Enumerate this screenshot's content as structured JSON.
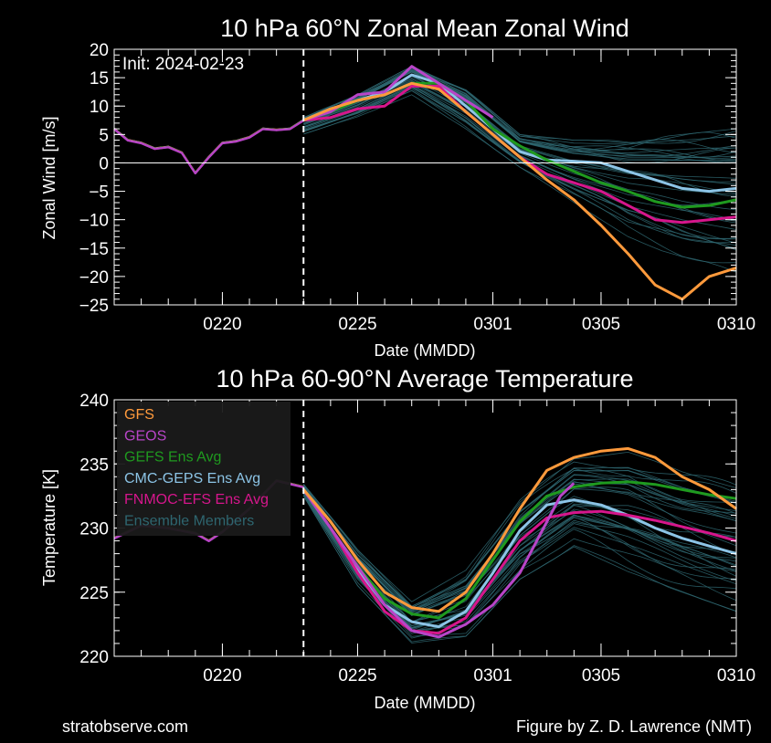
{
  "footer": {
    "left": "stratobserve.com",
    "right": "Figure by Z. D. Lawrence (NMT)"
  },
  "colors": {
    "GFS": "#ff9a3c",
    "GEOS": "#b845c8",
    "GEFS Ens Avg": "#1f9a1f",
    "CMC-GEPS Ens Avg": "#8cc4e6",
    "FNMOC-EFS Ens Avg": "#d6168c",
    "Ensemble Members": "#2e6670"
  },
  "chart_data": [
    {
      "type": "line",
      "title": "10 hPa  60°N   Zonal Mean Zonal Wind",
      "xlabel": "Date (MMDD)",
      "ylabel": "Zonal  Wind   [m/s]",
      "annotation": "Init: 2024-02-23",
      "init_day": 23,
      "x_units": "day index (0216 = 16 ... 0310 = 39)",
      "xlim": [
        16,
        39
      ],
      "ylim": [
        -25,
        20
      ],
      "y_ticks": [
        -25,
        -20,
        -15,
        -10,
        -5,
        0,
        5,
        10,
        15,
        20
      ],
      "x_ticks": [
        20,
        25,
        30,
        34,
        39
      ],
      "x_tick_labels": [
        "0220",
        "0225",
        "0301",
        "0305",
        "0310"
      ],
      "zero_line": true,
      "analysis": {
        "x": [
          16,
          16.5,
          17,
          17.5,
          18,
          18.5,
          19,
          19.5,
          20,
          20.5,
          21,
          21.5,
          22,
          22.5,
          23
        ],
        "y": [
          6,
          4,
          3.5,
          2.5,
          2.8,
          1.8,
          -1.8,
          1.0,
          3.5,
          3.8,
          4.5,
          6.0,
          5.8,
          6.0,
          7.5
        ]
      },
      "series": [
        {
          "name": "GFS",
          "x": [
            23,
            24,
            25,
            26,
            27,
            28,
            29,
            30,
            31,
            32,
            33,
            34,
            35,
            36,
            37,
            38,
            39
          ],
          "y": [
            7.5,
            9.5,
            11,
            12,
            14,
            13,
            9,
            5,
            1,
            -3,
            -6.5,
            -11,
            -16,
            -21.5,
            -24,
            -20,
            -18.5
          ]
        },
        {
          "name": "GEOS",
          "x": [
            23,
            24,
            25,
            26,
            27,
            28,
            29,
            30
          ],
          "y": [
            7.5,
            9,
            12,
            12.5,
            17,
            14,
            11,
            8
          ]
        },
        {
          "name": "GEFS Ens Avg",
          "x": [
            23,
            24,
            25,
            26,
            27,
            28,
            29,
            30,
            31,
            32,
            33,
            34,
            35,
            36,
            37,
            38,
            39
          ],
          "y": [
            7.5,
            9,
            11,
            12,
            14,
            14,
            11,
            6,
            3,
            0.5,
            -1.5,
            -3.5,
            -5,
            -6.8,
            -7.8,
            -7.5,
            -6.5
          ]
        },
        {
          "name": "CMC-GEPS Ens Avg",
          "x": [
            23,
            24,
            25,
            26,
            27,
            28,
            29,
            30,
            31,
            32,
            33,
            34,
            35,
            36,
            37,
            38,
            39
          ],
          "y": [
            7.5,
            9.5,
            11,
            12.5,
            15.5,
            14,
            10,
            6,
            2,
            0.5,
            0.3,
            0,
            -1.5,
            -3,
            -4.5,
            -5,
            -4.5
          ]
        },
        {
          "name": "FNMOC-EFS Ens Avg",
          "x": [
            23,
            24,
            25,
            26,
            27,
            28,
            29,
            30,
            31,
            32,
            33,
            34,
            35,
            36,
            37,
            38,
            39
          ],
          "y": [
            7.5,
            8,
            9.5,
            10,
            13.5,
            13.5,
            9,
            5,
            1,
            -2,
            -3.5,
            -5,
            -7.5,
            -10,
            -10.5,
            -10,
            -9.5
          ]
        }
      ],
      "ensemble_spread": {
        "x": [
          23,
          25,
          27,
          29,
          31,
          33,
          35,
          37,
          39
        ],
        "upper": [
          8,
          12,
          17,
          13,
          5,
          4,
          4,
          5,
          6
        ],
        "lower": [
          5,
          8,
          12,
          6,
          -1,
          -7,
          -13,
          -17,
          -20
        ]
      }
    },
    {
      "type": "line",
      "title": "10 hPa  60-90°N Average Temperature",
      "xlabel": "Date (MMDD)",
      "ylabel": "Temperature   [K]",
      "init_day": 23,
      "xlim": [
        16,
        39
      ],
      "ylim": [
        220,
        240
      ],
      "y_ticks": [
        220,
        225,
        230,
        235,
        240
      ],
      "x_ticks": [
        20,
        25,
        30,
        34,
        39
      ],
      "x_tick_labels": [
        "0220",
        "0225",
        "0301",
        "0305",
        "0310"
      ],
      "legend": {
        "placement": "top-left",
        "entries": [
          "GFS",
          "GEOS",
          "GEFS Ens Avg",
          "CMC-GEPS Ens Avg",
          "FNMOC-EFS Ens Avg",
          "Ensemble Members"
        ]
      },
      "analysis": {
        "x": [
          16,
          17,
          18,
          19,
          19.5,
          20,
          21,
          22,
          23
        ],
        "y": [
          229.2,
          230.2,
          230.0,
          229.6,
          229.0,
          229.7,
          231.5,
          233.7,
          233.2
        ]
      },
      "series": [
        {
          "name": "GFS",
          "x": [
            23,
            24,
            25,
            26,
            27,
            28,
            29,
            30,
            31,
            32,
            33,
            34,
            35,
            36,
            37,
            38,
            39
          ],
          "y": [
            233.0,
            230.5,
            227.5,
            225.0,
            223.8,
            223.5,
            225.0,
            228.0,
            231.5,
            234.5,
            235.5,
            236.0,
            236.2,
            235.5,
            234.0,
            233.0,
            231.5
          ]
        },
        {
          "name": "GEOS",
          "x": [
            23,
            24,
            25,
            26,
            27,
            28,
            29,
            30,
            31,
            31.5,
            32,
            32.5,
            33
          ],
          "y": [
            233.0,
            230.0,
            227.0,
            224.0,
            222.0,
            221.5,
            222.5,
            224.0,
            226.5,
            228.5,
            230.5,
            232.5,
            233.5
          ]
        },
        {
          "name": "GEFS Ens Avg",
          "x": [
            23,
            24,
            25,
            26,
            27,
            28,
            29,
            30,
            31,
            32,
            33,
            34,
            35,
            36,
            37,
            38,
            39
          ],
          "y": [
            233.0,
            230.0,
            227.0,
            224.5,
            223.3,
            223.0,
            224.5,
            227.5,
            230.5,
            232.5,
            233.2,
            233.5,
            233.6,
            233.4,
            233.0,
            232.6,
            232.3
          ]
        },
        {
          "name": "CMC-GEPS Ens Avg",
          "x": [
            23,
            24,
            25,
            26,
            27,
            28,
            29,
            30,
            31,
            32,
            33,
            34,
            35,
            36,
            37,
            38,
            39
          ],
          "y": [
            233.0,
            230.0,
            226.8,
            224.0,
            222.7,
            222.3,
            223.5,
            226.5,
            229.8,
            231.8,
            232.2,
            231.8,
            231.0,
            230.0,
            229.2,
            228.6,
            228.0
          ]
        },
        {
          "name": "FNMOC-EFS Ens Avg",
          "x": [
            23,
            24,
            25,
            26,
            27,
            28,
            29,
            30,
            31,
            32,
            33,
            34,
            35,
            36,
            37,
            38,
            39
          ],
          "y": [
            233.0,
            230.0,
            226.5,
            223.5,
            222.0,
            221.8,
            223.0,
            226.0,
            229.0,
            230.8,
            231.2,
            231.3,
            231.0,
            230.6,
            230.1,
            229.6,
            229.0
          ]
        }
      ],
      "ensemble_spread": {
        "x": [
          23,
          25,
          27,
          29,
          31,
          33,
          35,
          37,
          39
        ],
        "upper": [
          233.5,
          228.5,
          224.5,
          227.0,
          232.5,
          236.0,
          236.5,
          235.0,
          234.0
        ],
        "lower": [
          232.5,
          225.5,
          221.0,
          221.5,
          226.0,
          228.5,
          226.5,
          225.0,
          223.5
        ]
      }
    }
  ]
}
